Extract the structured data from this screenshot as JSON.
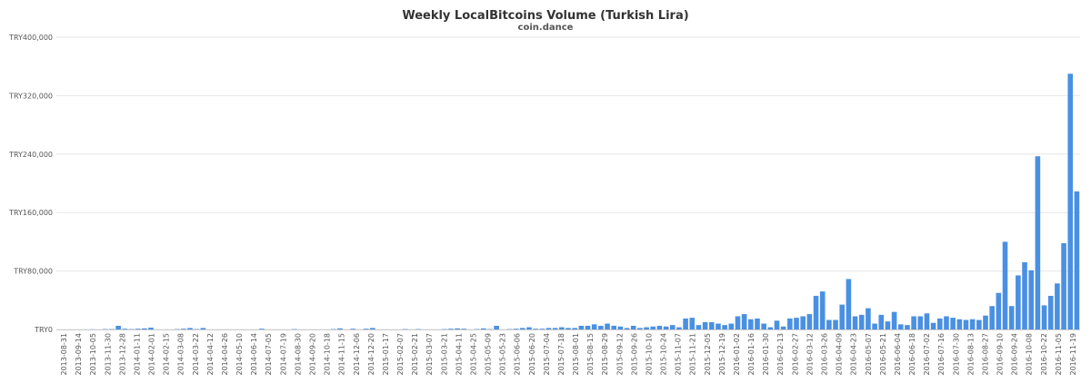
{
  "chart_data": {
    "type": "bar",
    "title": "Weekly LocalBitcoins Volume (Turkish Lira)",
    "subtitle": "coin.dance",
    "xlabel": "",
    "ylabel": "",
    "ylim": [
      0,
      400000
    ],
    "y_ticks": [
      0,
      80000,
      160000,
      240000,
      320000,
      400000
    ],
    "y_tick_labels": [
      "TRY0",
      "TRY80,000",
      "TRY160,000",
      "TRY240,000",
      "TRY320,000",
      "TRY400,000"
    ],
    "grid": true,
    "legend": "none",
    "colors": {
      "bar": "#4a90e2",
      "grid": "#e6e6e6",
      "axis": "#cccccc",
      "text": "#555555"
    },
    "x_tick_labels": [
      "2013-08-31",
      "2013-09-14",
      "2013-10-05",
      "2013-11-30",
      "2013-12-28",
      "2014-01-11",
      "2014-02-01",
      "2014-02-15",
      "2014-03-08",
      "2014-03-22",
      "2014-04-12",
      "2014-04-26",
      "2014-05-10",
      "2014-06-14",
      "2014-07-05",
      "2014-07-19",
      "2014-08-30",
      "2014-09-20",
      "2014-10-18",
      "2014-11-15",
      "2014-12-06",
      "2014-12-20",
      "2015-01-17",
      "2015-02-07",
      "2015-02-21",
      "2015-03-07",
      "2015-03-21",
      "2015-04-11",
      "2015-04-25",
      "2015-05-09",
      "2015-05-23",
      "2015-06-06",
      "2015-06-20",
      "2015-07-04",
      "2015-07-18",
      "2015-08-01",
      "2015-08-15",
      "2015-08-29",
      "2015-09-12",
      "2015-09-26",
      "2015-10-10",
      "2015-10-24",
      "2015-11-07",
      "2015-11-21",
      "2015-12-05",
      "2015-12-19",
      "2016-01-02",
      "2016-01-16",
      "2016-01-30",
      "2016-02-13",
      "2016-02-27",
      "2016-03-12",
      "2016-03-26",
      "2016-04-09",
      "2016-04-23",
      "2016-05-07",
      "2016-05-21",
      "2016-06-04",
      "2016-06-18",
      "2016-07-02",
      "2016-07-16",
      "2016-07-30",
      "2016-08-13",
      "2016-08-27",
      "2016-09-10",
      "2016-09-24",
      "2016-10-08",
      "2016-10-22",
      "2016-11-05",
      "2016-11-19"
    ],
    "values": [
      0,
      0,
      0,
      0,
      0,
      200,
      0,
      500,
      500,
      5000,
      1000,
      500,
      1000,
      1500,
      2500,
      0,
      0,
      0,
      500,
      1000,
      2000,
      500,
      2000,
      0,
      0,
      0,
      0,
      0,
      0,
      0,
      0,
      1000,
      0,
      0,
      0,
      0,
      500,
      0,
      0,
      0,
      0,
      0,
      500,
      1500,
      0,
      1000,
      0,
      1000,
      2000,
      0,
      0,
      0,
      0,
      500,
      0,
      500,
      0,
      0,
      0,
      500,
      1000,
      1500,
      1000,
      0,
      500,
      1500,
      500,
      5000,
      0,
      500,
      1000,
      2000,
      3000,
      1000,
      1000,
      2000,
      2000,
      3000,
      2000,
      2000,
      5000,
      5000,
      7000,
      5000,
      8000,
      5000,
      4000,
      2000,
      5000,
      2000,
      3000,
      4000,
      5000,
      4000,
      6000,
      3000,
      15000,
      16000,
      6000,
      10000,
      10000,
      8000,
      6000,
      8000,
      18000,
      21000,
      14000,
      15000,
      8000,
      3000,
      12000,
      4000,
      15000,
      16000,
      18000,
      21000,
      46000,
      52000,
      13000,
      13000,
      34000,
      69000,
      18000,
      20000,
      29000,
      8000,
      20000,
      11000,
      24000,
      7000,
      6000,
      18000,
      18000,
      22000,
      9000,
      15000,
      18000,
      16000,
      14000,
      13000,
      14000,
      13000,
      19000,
      32000,
      50000,
      120000,
      32000,
      74000,
      92000,
      81000,
      237000,
      33000,
      46000,
      63000,
      118000,
      350000,
      189000
    ]
  }
}
